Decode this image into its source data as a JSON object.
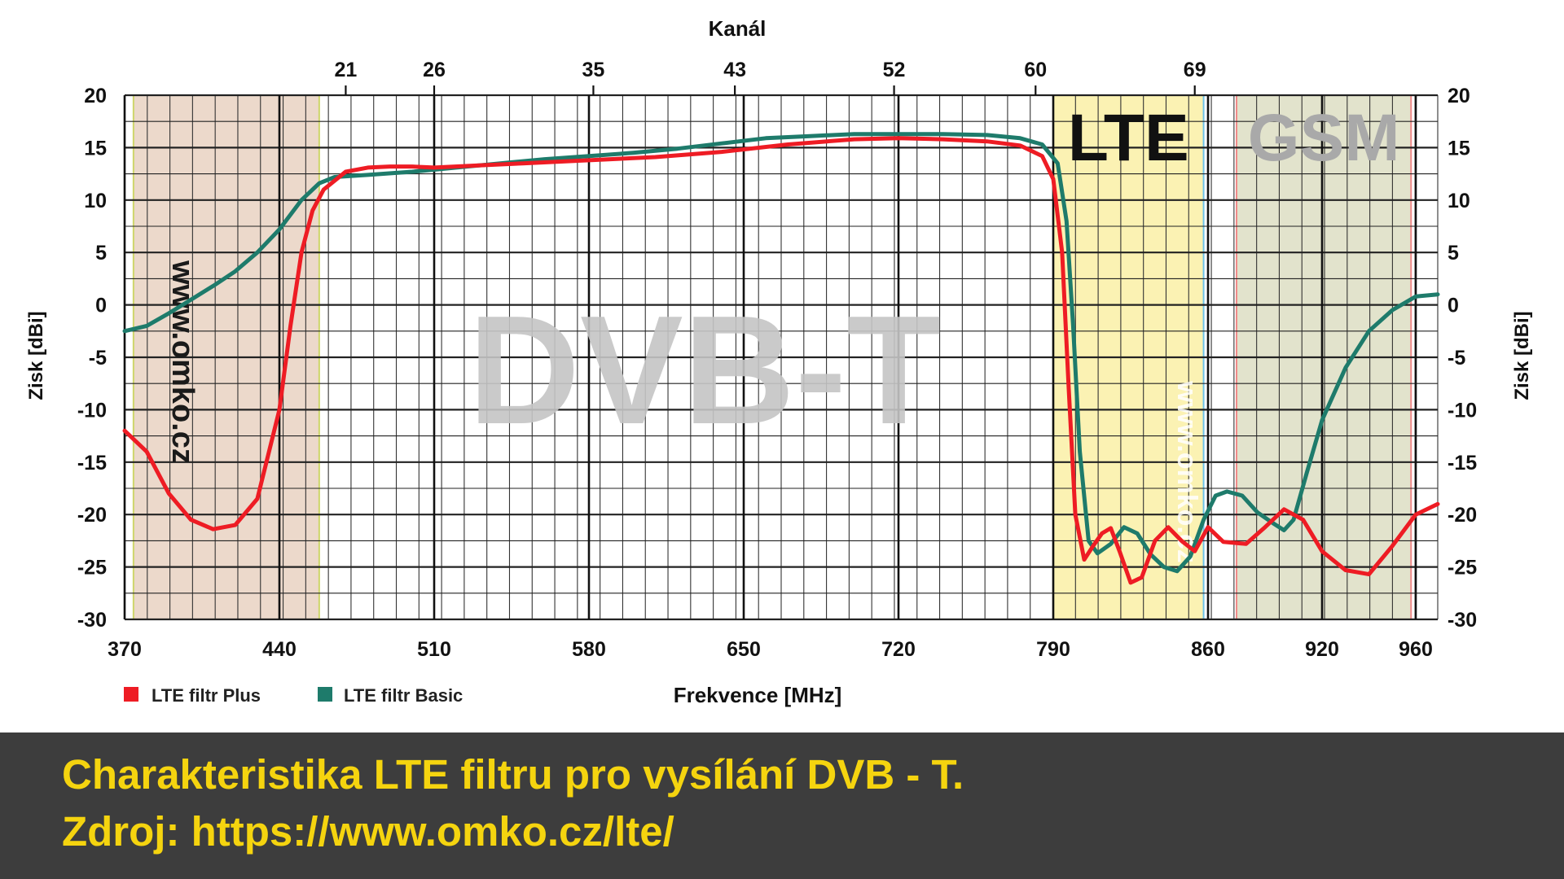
{
  "chart_data": {
    "type": "line",
    "title": "",
    "top_axis_label": "Kanál",
    "xlabel": "Frekvence [MHz]",
    "ylabel_left": "Zisk [dBi]",
    "ylabel_right": "Zisk [dBi]",
    "xlim": [
      370,
      965
    ],
    "ylim": [
      -30,
      20
    ],
    "grid": true,
    "x_ticks": [
      "370",
      "440",
      "510",
      "580",
      "650",
      "720",
      "790",
      "860",
      "920",
      "960"
    ],
    "x_tick_values": [
      370,
      440,
      510,
      580,
      650,
      720,
      790,
      860,
      920,
      960
    ],
    "y_ticks": [
      "20",
      "15",
      "10",
      "5",
      "0",
      "-5",
      "-10",
      "-15",
      "-20",
      "-25",
      "-30"
    ],
    "y_tick_values": [
      20,
      15,
      10,
      5,
      0,
      -5,
      -10,
      -15,
      -20,
      -25,
      -30
    ],
    "channel_ticks": [
      {
        "label": "21",
        "freq": 470
      },
      {
        "label": "26",
        "freq": 510
      },
      {
        "label": "35",
        "freq": 582
      },
      {
        "label": "43",
        "freq": 646
      },
      {
        "label": "52",
        "freq": 718
      },
      {
        "label": "60",
        "freq": 782
      },
      {
        "label": "69",
        "freq": 854
      }
    ],
    "legend_position": "bottom-left",
    "series": [
      {
        "name": "LTE filtr Plus",
        "color": "#ee1c24",
        "points": [
          [
            370,
            -12
          ],
          [
            380,
            -14
          ],
          [
            390,
            -18
          ],
          [
            400,
            -20.5
          ],
          [
            410,
            -21.4
          ],
          [
            420,
            -21
          ],
          [
            430,
            -18.5
          ],
          [
            440,
            -10
          ],
          [
            445,
            -2
          ],
          [
            450,
            5
          ],
          [
            455,
            9
          ],
          [
            460,
            11
          ],
          [
            470,
            12.7
          ],
          [
            480,
            13.1
          ],
          [
            490,
            13.2
          ],
          [
            500,
            13.2
          ],
          [
            510,
            13.1
          ],
          [
            530,
            13.3
          ],
          [
            550,
            13.5
          ],
          [
            580,
            13.8
          ],
          [
            610,
            14.1
          ],
          [
            640,
            14.6
          ],
          [
            670,
            15.3
          ],
          [
            700,
            15.8
          ],
          [
            720,
            15.9
          ],
          [
            740,
            15.8
          ],
          [
            760,
            15.6
          ],
          [
            775,
            15.2
          ],
          [
            785,
            14.2
          ],
          [
            790,
            12
          ],
          [
            794,
            5
          ],
          [
            797,
            -8
          ],
          [
            800,
            -20
          ],
          [
            804,
            -24.3
          ],
          [
            808,
            -23
          ],
          [
            812,
            -21.8
          ],
          [
            816,
            -21.3
          ],
          [
            820,
            -23.5
          ],
          [
            825,
            -26.5
          ],
          [
            830,
            -26
          ],
          [
            836,
            -22.5
          ],
          [
            842,
            -21.2
          ],
          [
            848,
            -22.5
          ],
          [
            854,
            -23.5
          ],
          [
            860,
            -21.2
          ],
          [
            868,
            -22.6
          ],
          [
            880,
            -22.8
          ],
          [
            890,
            -21.2
          ],
          [
            900,
            -19.5
          ],
          [
            910,
            -20.5
          ],
          [
            920,
            -23.5
          ],
          [
            930,
            -25.3
          ],
          [
            940,
            -25.7
          ],
          [
            950,
            -23
          ],
          [
            960,
            -20
          ],
          [
            965,
            -19
          ]
        ]
      },
      {
        "name": "LTE filtr Basic",
        "color": "#1e7b6b",
        "points": [
          [
            370,
            -2.5
          ],
          [
            380,
            -2
          ],
          [
            390,
            -0.8
          ],
          [
            400,
            0.5
          ],
          [
            410,
            1.8
          ],
          [
            420,
            3.2
          ],
          [
            430,
            5
          ],
          [
            440,
            7.2
          ],
          [
            450,
            10
          ],
          [
            458,
            11.6
          ],
          [
            465,
            12.2
          ],
          [
            480,
            12.4
          ],
          [
            500,
            12.7
          ],
          [
            520,
            13.1
          ],
          [
            540,
            13.5
          ],
          [
            560,
            13.9
          ],
          [
            580,
            14.2
          ],
          [
            600,
            14.5
          ],
          [
            620,
            14.9
          ],
          [
            640,
            15.4
          ],
          [
            660,
            15.9
          ],
          [
            680,
            16.1
          ],
          [
            700,
            16.3
          ],
          [
            720,
            16.3
          ],
          [
            740,
            16.3
          ],
          [
            760,
            16.2
          ],
          [
            775,
            15.9
          ],
          [
            785,
            15.3
          ],
          [
            792,
            13.5
          ],
          [
            796,
            8
          ],
          [
            799,
            -2
          ],
          [
            802,
            -14
          ],
          [
            806,
            -22.5
          ],
          [
            810,
            -23.7
          ],
          [
            816,
            -22.8
          ],
          [
            822,
            -21.2
          ],
          [
            828,
            -21.8
          ],
          [
            834,
            -23.8
          ],
          [
            840,
            -25
          ],
          [
            846,
            -25.4
          ],
          [
            852,
            -24
          ],
          [
            858,
            -20.5
          ],
          [
            864,
            -18.2
          ],
          [
            870,
            -17.8
          ],
          [
            878,
            -18.2
          ],
          [
            886,
            -19.8
          ],
          [
            894,
            -20.8
          ],
          [
            900,
            -21.5
          ],
          [
            905,
            -20.5
          ],
          [
            912,
            -16
          ],
          [
            920,
            -11
          ],
          [
            930,
            -6
          ],
          [
            940,
            -2.5
          ],
          [
            950,
            -0.5
          ],
          [
            960,
            0.8
          ],
          [
            965,
            1
          ]
        ]
      }
    ],
    "bands": [
      {
        "label": "",
        "from": 374,
        "to": 458,
        "fill": "#ecd9cb",
        "stroke": "#cdd66a"
      },
      {
        "label": "LTE",
        "from": 790,
        "to": 858,
        "fill": "#fbf2b3",
        "stroke": "#6fc3e8"
      },
      {
        "label": "GSM",
        "from": 875,
        "to": 958,
        "fill": "#e2e3cc",
        "stroke": "#f08a8a"
      }
    ],
    "watermark_big": "DVB-T",
    "watermark_side": "www.omko.cz"
  },
  "caption": {
    "line1": "Charakteristika LTE filtru pro vysílání DVB - T.",
    "line2": "Zdroj: https://www.omko.cz/lte/"
  }
}
